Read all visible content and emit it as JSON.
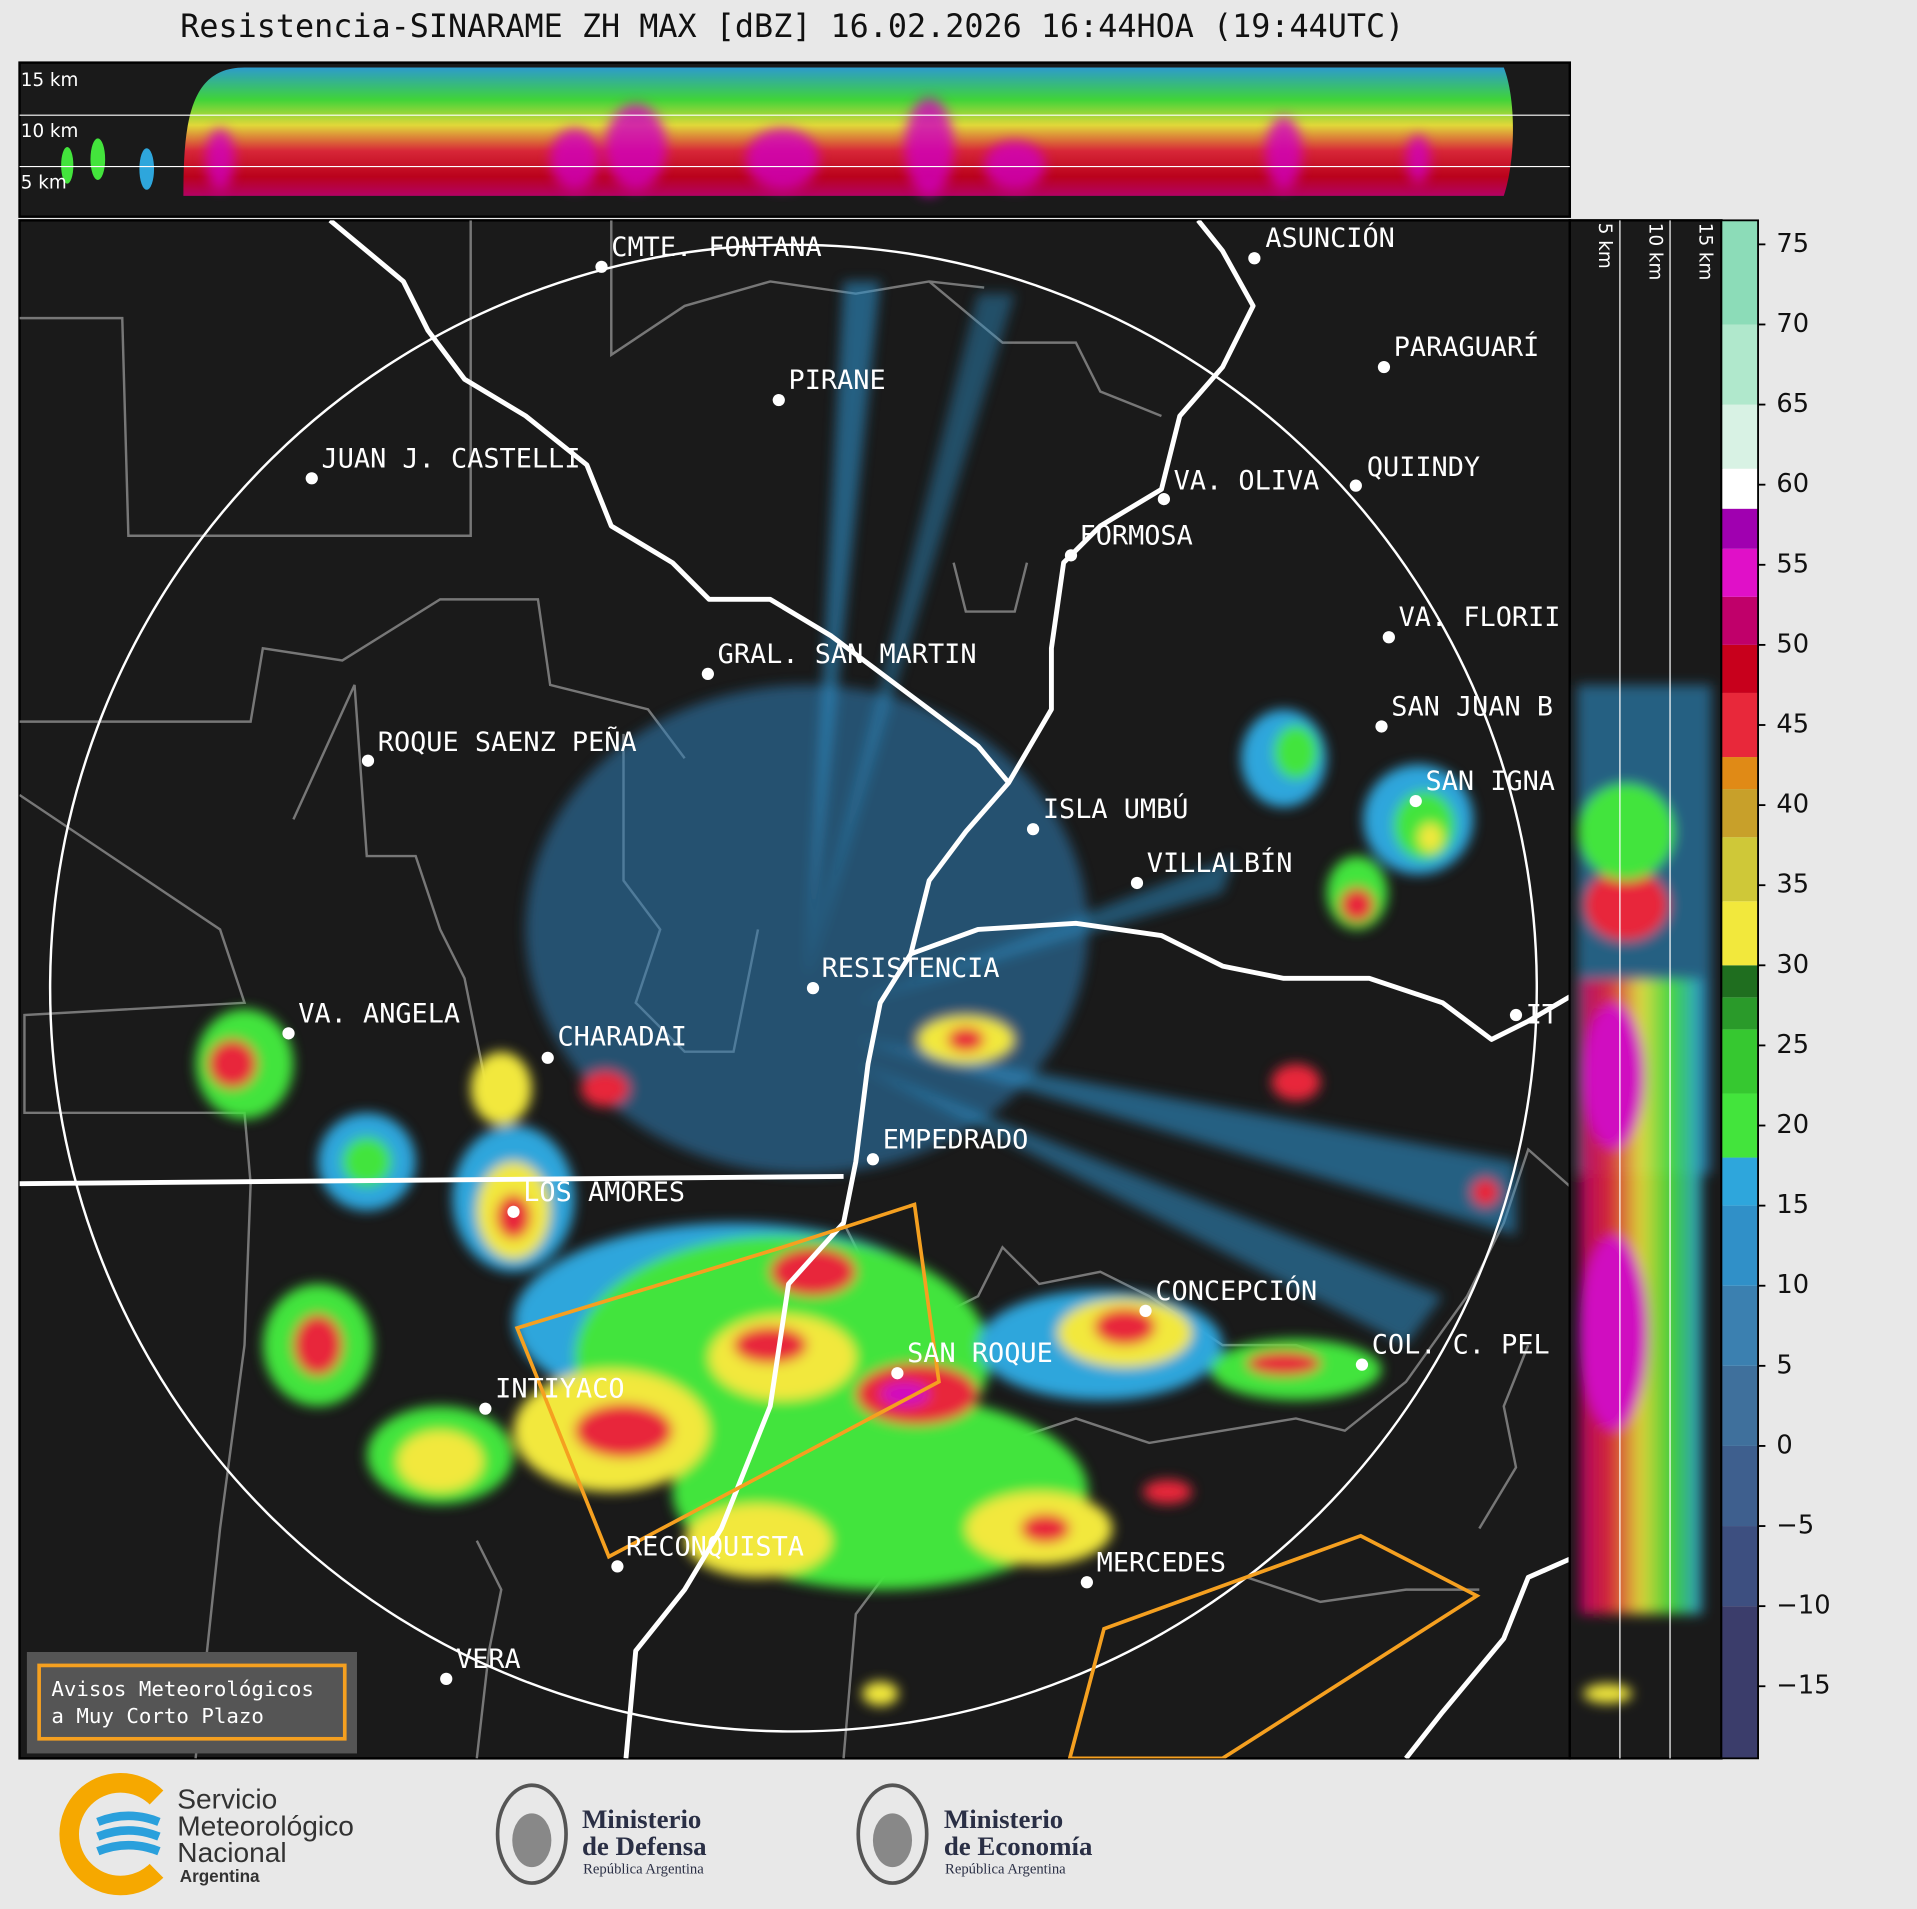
{
  "title": "Resistencia-SINARAME ZH MAX [dBZ] 16.02.2026 16:44HOA (19:44UTC)",
  "height_labels": [
    "15 km",
    "10 km",
    "5 km"
  ],
  "cities": [
    "CMTE. FONTANA",
    "PIRANE",
    "JUAN J. CASTELLI",
    "VA. OLIVA",
    "QUIINDY",
    "FORMOSA",
    "ASUNCIÓN",
    "PARAGUARÍ",
    "VA. FLORII",
    "GRAL. SAN MARTIN",
    "ROQUE SAENZ PEÑA",
    "SAN JUAN B",
    "SAN IGNA",
    "ISLA UMBÚ",
    "VILLALBÍN",
    "RESISTENCIA",
    "VA. ANGELA",
    "CHARADAI",
    "IT",
    "EMPEDRADO",
    "LOS AMORES",
    "CONCEPCIÓN",
    "COL. C. PEL",
    "SAN ROQUE",
    "INTIYACO",
    "RECONQUISTA",
    "MERCEDES",
    "VERA"
  ],
  "colorbar": {
    "lim": [
      -19.5,
      76.5
    ],
    "ticks": [
      {
        "value": -15,
        "label": "−15"
      },
      {
        "value": -10,
        "label": "−10"
      },
      {
        "value": -5,
        "label": "−5"
      },
      0,
      5,
      10,
      15,
      20,
      25,
      30,
      35,
      40,
      45,
      50,
      55,
      60,
      65,
      70,
      75
    ],
    "stops": [
      {
        "value": -19.5,
        "color": "#3b3d6b"
      },
      {
        "value": -10,
        "color": "#3d4f80"
      },
      {
        "value": -5,
        "color": "#3e5f8e"
      },
      {
        "value": 0,
        "color": "#3f709c"
      },
      {
        "value": 5,
        "color": "#3b80b0"
      },
      {
        "value": 10,
        "color": "#3090c8"
      },
      {
        "value": 15,
        "color": "#2ea6dc"
      },
      {
        "value": 18,
        "color": "#43e43c"
      },
      {
        "value": 22,
        "color": "#36c830"
      },
      {
        "value": 26,
        "color": "#2a9a2a"
      },
      {
        "value": 28,
        "color": "#1f6e1f"
      },
      {
        "value": 30,
        "color": "#f2e83c"
      },
      {
        "value": 34,
        "color": "#cfc838"
      },
      {
        "value": 38,
        "color": "#c8a02a"
      },
      {
        "value": 41,
        "color": "#e08a16"
      },
      {
        "value": 43,
        "color": "#e8283a"
      },
      {
        "value": 47,
        "color": "#c8001c"
      },
      {
        "value": 50,
        "color": "#c0006a"
      },
      {
        "value": 53,
        "color": "#e010c8"
      },
      {
        "value": 56,
        "color": "#a000b0"
      },
      {
        "value": 58.5,
        "color": "#ffffff"
      },
      {
        "value": 61,
        "color": "#d8f2e4"
      },
      {
        "value": 65,
        "color": "#b0e8cc"
      },
      {
        "value": 70,
        "color": "#8cdcb8"
      }
    ]
  },
  "warning_box": [
    "Avisos Meteorológicos",
    "a Muy Corto Plazo"
  ],
  "logos": {
    "smn": [
      "Servicio",
      "Meteorológico",
      "Nacional",
      "Argentina"
    ],
    "defensa": [
      "Ministerio",
      "de Defensa",
      "República Argentina"
    ],
    "economia": [
      "Ministerio",
      "de Economía",
      "República Argentina"
    ]
  }
}
